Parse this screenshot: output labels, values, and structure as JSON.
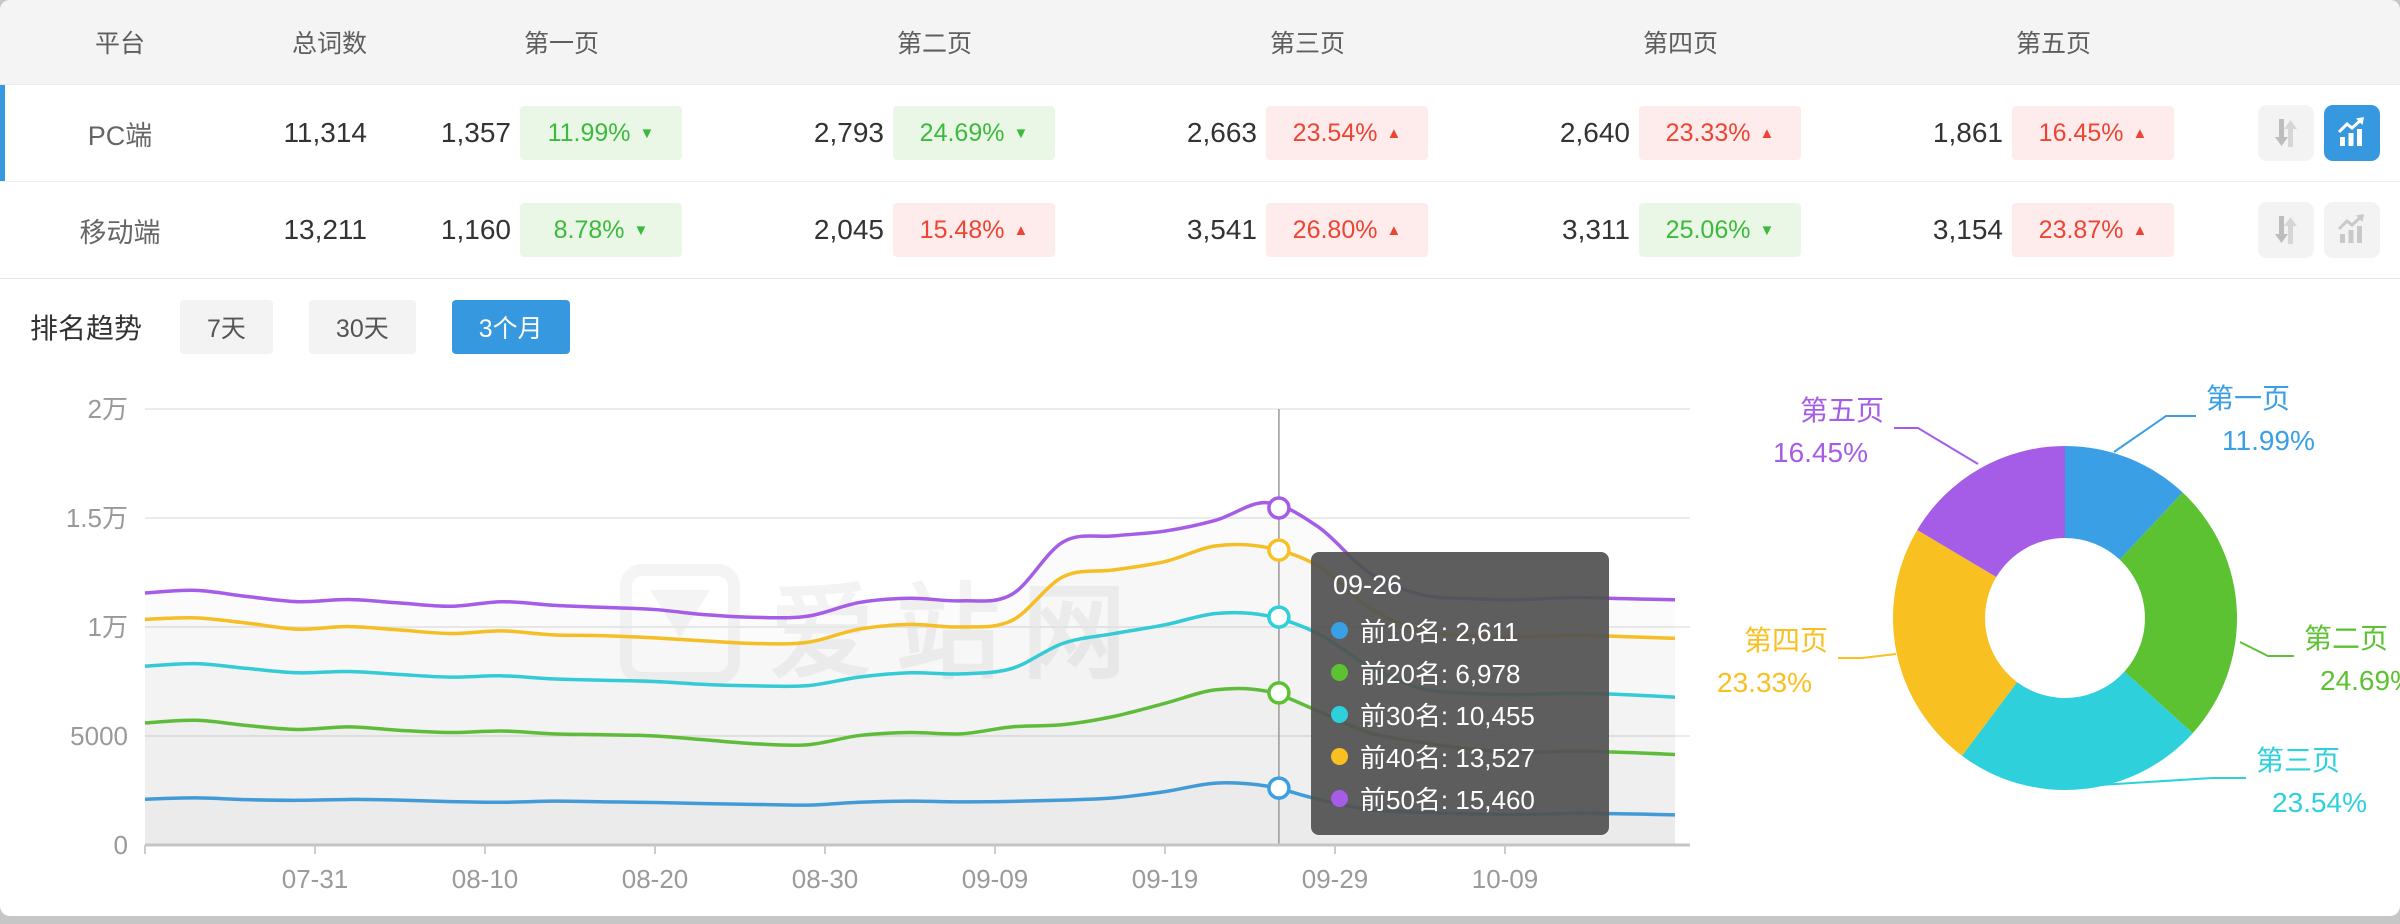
{
  "colors": {
    "accent": "#3699e0",
    "badge_up_red": "#ee4433",
    "badge_down_green": "#3db93d",
    "header_bg": "#f4f4f4",
    "series": [
      "#3a9fe4",
      "#5cc231",
      "#2ed0dc",
      "#f9c021",
      "#a55ce6"
    ]
  },
  "table": {
    "columns": [
      "平台",
      "总词数",
      "第一页",
      "第二页",
      "第三页",
      "第四页",
      "第五页"
    ],
    "rows": [
      {
        "platform": "PC端",
        "total": "11,314",
        "selected": true,
        "pages": [
          {
            "count": "1,357",
            "pct": "11.99%",
            "dir": "down"
          },
          {
            "count": "2,793",
            "pct": "24.69%",
            "dir": "down"
          },
          {
            "count": "2,663",
            "pct": "23.54%",
            "dir": "up"
          },
          {
            "count": "2,640",
            "pct": "23.33%",
            "dir": "up"
          },
          {
            "count": "1,861",
            "pct": "16.45%",
            "dir": "up"
          }
        ],
        "chart_active": true
      },
      {
        "platform": "移动端",
        "total": "13,211",
        "selected": false,
        "pages": [
          {
            "count": "1,160",
            "pct": "8.78%",
            "dir": "down"
          },
          {
            "count": "2,045",
            "pct": "15.48%",
            "dir": "up"
          },
          {
            "count": "3,541",
            "pct": "26.80%",
            "dir": "up"
          },
          {
            "count": "3,311",
            "pct": "25.06%",
            "dir": "down"
          },
          {
            "count": "3,154",
            "pct": "23.87%",
            "dir": "up"
          }
        ],
        "chart_active": false
      }
    ]
  },
  "trend": {
    "title": "排名趋势",
    "tabs": [
      "7天",
      "30天",
      "3个月"
    ],
    "active_tab": "3个月"
  },
  "watermark": {
    "text": "爱站网"
  },
  "chart_data": [
    {
      "type": "line",
      "title": "排名趋势 3个月",
      "x": [
        "07-21",
        "07-24",
        "07-27",
        "07-30",
        "08-02",
        "08-05",
        "08-08",
        "08-11",
        "08-14",
        "08-17",
        "08-20",
        "08-23",
        "08-26",
        "08-29",
        "09-01",
        "09-04",
        "09-07",
        "09-10",
        "09-13",
        "09-16",
        "09-19",
        "09-22",
        "09-25",
        "09-28",
        "10-01",
        "10-04",
        "10-07",
        "10-10",
        "10-13",
        "10-16",
        "10-19"
      ],
      "xticks": [
        "07-31",
        "08-10",
        "08-20",
        "08-30",
        "09-09",
        "09-19",
        "09-29",
        "10-09"
      ],
      "yticks": [
        "0",
        "5000",
        "1万",
        "1.5万",
        "2万"
      ],
      "ylim": [
        0,
        20000
      ],
      "grid": true,
      "series": [
        {
          "name": "前10名",
          "color": "#3a9fe4",
          "values": [
            2100,
            2160,
            2080,
            2050,
            2090,
            2060,
            1990,
            1960,
            2010,
            1980,
            1950,
            1900,
            1860,
            1830,
            1960,
            2010,
            1980,
            2000,
            2060,
            2160,
            2450,
            2840,
            2700,
            2100,
            1620,
            1500,
            1430,
            1400,
            1450,
            1430,
            1380
          ]
        },
        {
          "name": "前20名",
          "color": "#5cc231",
          "values": [
            5600,
            5720,
            5480,
            5300,
            5420,
            5260,
            5160,
            5230,
            5100,
            5060,
            5000,
            4820,
            4640,
            4600,
            5020,
            5160,
            5100,
            5420,
            5520,
            5900,
            6500,
            7120,
            7050,
            6150,
            5150,
            4720,
            4400,
            4250,
            4300,
            4250,
            4150
          ]
        },
        {
          "name": "前30名",
          "color": "#2ed0dc",
          "values": [
            8200,
            8320,
            8100,
            7900,
            7960,
            7820,
            7700,
            7760,
            7620,
            7560,
            7500,
            7360,
            7300,
            7310,
            7700,
            7900,
            7850,
            8100,
            9250,
            9700,
            10100,
            10620,
            10520,
            9700,
            8200,
            7200,
            6950,
            6900,
            6960,
            6900,
            6780
          ]
        },
        {
          "name": "前40名",
          "color": "#f9c021",
          "values": [
            10350,
            10420,
            10180,
            9900,
            10020,
            9860,
            9700,
            9820,
            9640,
            9600,
            9500,
            9360,
            9240,
            9300,
            9900,
            10120,
            10000,
            10300,
            12300,
            12620,
            13000,
            13720,
            13650,
            12800,
            10900,
            9850,
            9600,
            9560,
            9620,
            9560,
            9480
          ]
        },
        {
          "name": "前50名",
          "color": "#a55ce6",
          "values": [
            11560,
            11680,
            11400,
            11160,
            11260,
            11100,
            10950,
            11160,
            11000,
            10900,
            10800,
            10560,
            10440,
            10500,
            11120,
            11320,
            11200,
            11500,
            13900,
            14180,
            14400,
            14900,
            15700,
            14600,
            12500,
            11500,
            11300,
            11260,
            11360,
            11300,
            11250
          ]
        }
      ],
      "tooltip": {
        "date": "09-26",
        "items": [
          {
            "name": "前10名",
            "value": "2,611",
            "color": "#3a9fe4"
          },
          {
            "name": "前20名",
            "value": "6,978",
            "color": "#5cc231"
          },
          {
            "name": "前30名",
            "value": "10,455",
            "color": "#2ed0dc"
          },
          {
            "name": "前40名",
            "value": "13,527",
            "color": "#f9c021"
          },
          {
            "name": "前50名",
            "value": "15,460",
            "color": "#a55ce6"
          }
        ]
      }
    },
    {
      "type": "pie",
      "labels": [
        "第一页",
        "第二页",
        "第三页",
        "第四页",
        "第五页"
      ],
      "values": [
        11.99,
        24.69,
        23.54,
        23.33,
        16.45
      ],
      "display": [
        "11.99%",
        "24.69%",
        "23.54%",
        "23.33%",
        "16.45%"
      ],
      "colors": [
        "#3a9fe4",
        "#5cc231",
        "#2ed0dc",
        "#f9c021",
        "#a55ce6"
      ],
      "legend_position": "around",
      "donut": true
    }
  ]
}
